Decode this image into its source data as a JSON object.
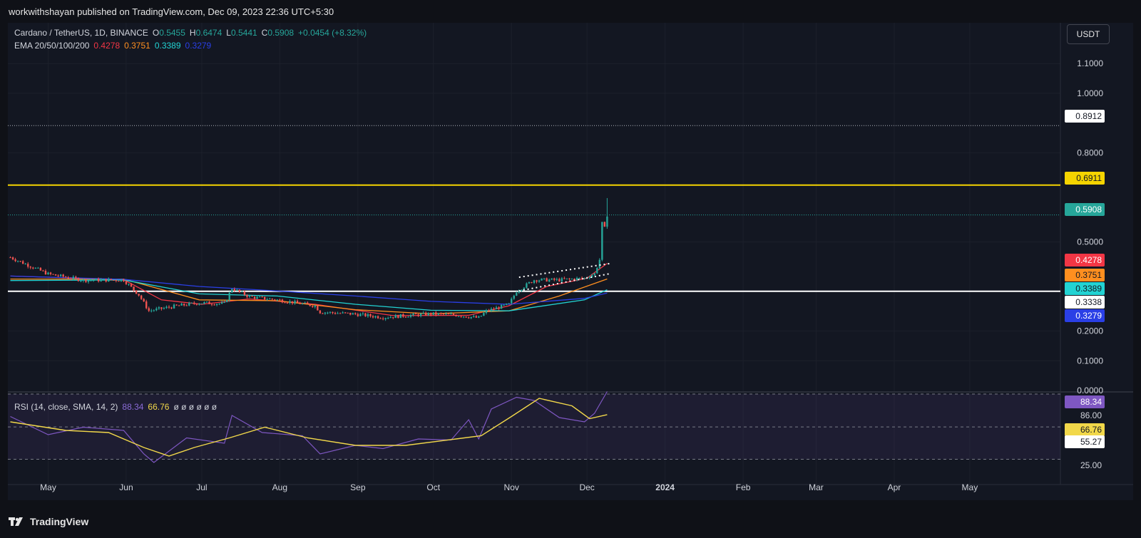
{
  "header": {
    "published": "workwithshayan published on TradingView.com, Dec 09, 2023 22:36 UTC+5:30"
  },
  "legend": {
    "symbol": "Cardano / TetherUS, 1D, BINANCE",
    "open_label": "O",
    "open": "0.5455",
    "high_label": "H",
    "high": "0.6474",
    "low_label": "L",
    "low": "0.5441",
    "close_label": "C",
    "close": "0.5908",
    "change": "+0.0454 (+8.32%)",
    "ema_label": "EMA 20/50/100/200",
    "ema20": "0.4278",
    "ema50": "0.3751",
    "ema100": "0.3389",
    "ema200": "0.3279",
    "rsi_label": "RSI (14, close, SMA, 14, 2)",
    "rsi_value": "88.34",
    "rsi_ma": "66.76",
    "rsi_extra": "ø ø ø ø ø ø"
  },
  "toolbar": {
    "currency": "USDT"
  },
  "footer": {
    "brand": "TradingView"
  },
  "colors": {
    "up": "#26a69a",
    "down": "#ef5350",
    "ema20": "#f23645",
    "ema50": "#ff8f1f",
    "ema100": "#22d3d3",
    "ema200": "#2a3fe6",
    "yellow_line": "#f5d400",
    "rsi": "#7e57c2",
    "rsi_ma": "#f2d84a"
  },
  "chart_data": {
    "type": "line",
    "symbol": "Cardano / TetherUS",
    "interval": "1D",
    "exchange": "BINANCE",
    "price_axis": {
      "ticks": [
        "1.1000",
        "1.0000",
        "0.8000",
        "0.5000",
        "0.2000",
        "0.1000",
        "0.0000"
      ],
      "ylim": [
        0,
        1.17
      ]
    },
    "x_axis": {
      "ticks": [
        "May",
        "Jun",
        "Jul",
        "Aug",
        "Sep",
        "Oct",
        "Nov",
        "Dec",
        "2024",
        "Feb",
        "Mar",
        "Apr",
        "May"
      ],
      "xlim": [
        "2023-04-15",
        "2024-06-06"
      ]
    },
    "price_labels": [
      {
        "value": "0.8912",
        "style": "white"
      },
      {
        "value": "0.6911",
        "style": "yellow"
      },
      {
        "value": "0.5908",
        "style": "green"
      },
      {
        "value": "0.4278",
        "style": "red"
      },
      {
        "value": "0.3751",
        "style": "orange"
      },
      {
        "value": "0.3389",
        "style": "cyan"
      },
      {
        "value": "0.3338",
        "style": "white"
      },
      {
        "value": "0.3279",
        "style": "blue"
      }
    ],
    "horizontal_lines": [
      {
        "price": 0.8912,
        "style": "dotted",
        "color": "#b2b5be"
      },
      {
        "price": 0.6911,
        "style": "solid",
        "color": "#f5d400"
      },
      {
        "price": 0.5908,
        "style": "dotted",
        "color": "#26a69a"
      },
      {
        "price": 0.3338,
        "style": "solid",
        "color": "#ffffff"
      }
    ],
    "channel": {
      "upper": [
        [
          "2023-11-04",
          0.381
        ],
        [
          "2023-12-10",
          0.427
        ]
      ],
      "lower": [
        [
          "2023-11-04",
          0.335
        ],
        [
          "2023-12-10",
          0.393
        ]
      ]
    },
    "price_series": [
      [
        "2023-04-16",
        0.448
      ],
      [
        "2023-05-01",
        0.392
      ],
      [
        "2023-05-15",
        0.371
      ],
      [
        "2023-05-31",
        0.372
      ],
      [
        "2023-06-06",
        0.322
      ],
      [
        "2023-06-10",
        0.268
      ],
      [
        "2023-06-20",
        0.283
      ],
      [
        "2023-06-30",
        0.295
      ],
      [
        "2023-07-10",
        0.292
      ],
      [
        "2023-07-13",
        0.344
      ],
      [
        "2023-07-20",
        0.315
      ],
      [
        "2023-07-31",
        0.305
      ],
      [
        "2023-08-15",
        0.285
      ],
      [
        "2023-08-17",
        0.264
      ],
      [
        "2023-08-31",
        0.257
      ],
      [
        "2023-09-11",
        0.246
      ],
      [
        "2023-09-20",
        0.252
      ],
      [
        "2023-09-30",
        0.258
      ],
      [
        "2023-10-10",
        0.254
      ],
      [
        "2023-10-19",
        0.244
      ],
      [
        "2023-10-22",
        0.267
      ],
      [
        "2023-10-31",
        0.29
      ],
      [
        "2023-11-03",
        0.334
      ],
      [
        "2023-11-10",
        0.372
      ],
      [
        "2023-11-20",
        0.372
      ],
      [
        "2023-11-30",
        0.378
      ],
      [
        "2023-12-04",
        0.393
      ],
      [
        "2023-12-06",
        0.44
      ],
      [
        "2023-12-07",
        0.562
      ],
      [
        "2023-12-08",
        0.5455
      ],
      [
        "2023-12-09",
        0.5908
      ]
    ],
    "ema_series": [
      {
        "name": "EMA 20",
        "value": "0.4278",
        "points": [
          [
            "2023-04-16",
            0.385
          ],
          [
            "2023-05-31",
            0.373
          ],
          [
            "2023-06-15",
            0.305
          ],
          [
            "2023-07-01",
            0.29
          ],
          [
            "2023-07-20",
            0.308
          ],
          [
            "2023-08-15",
            0.29
          ],
          [
            "2023-09-15",
            0.252
          ],
          [
            "2023-10-15",
            0.253
          ],
          [
            "2023-10-31",
            0.285
          ],
          [
            "2023-11-15",
            0.35
          ],
          [
            "2023-12-01",
            0.378
          ],
          [
            "2023-12-09",
            0.4278
          ]
        ]
      },
      {
        "name": "EMA 50",
        "value": "0.3751",
        "points": [
          [
            "2023-04-16",
            0.375
          ],
          [
            "2023-05-31",
            0.375
          ],
          [
            "2023-06-30",
            0.305
          ],
          [
            "2023-07-31",
            0.302
          ],
          [
            "2023-08-31",
            0.272
          ],
          [
            "2023-09-30",
            0.258
          ],
          [
            "2023-10-31",
            0.268
          ],
          [
            "2023-11-20",
            0.318
          ],
          [
            "2023-12-09",
            0.3751
          ]
        ]
      },
      {
        "name": "EMA 100",
        "value": "0.3389",
        "points": [
          [
            "2023-04-16",
            0.37
          ],
          [
            "2023-05-31",
            0.372
          ],
          [
            "2023-06-30",
            0.325
          ],
          [
            "2023-07-31",
            0.318
          ],
          [
            "2023-08-31",
            0.29
          ],
          [
            "2023-09-30",
            0.27
          ],
          [
            "2023-10-31",
            0.268
          ],
          [
            "2023-11-30",
            0.305
          ],
          [
            "2023-12-09",
            0.3389
          ]
        ]
      },
      {
        "name": "EMA 200",
        "value": "0.3279",
        "points": [
          [
            "2023-04-16",
            0.385
          ],
          [
            "2023-05-31",
            0.374
          ],
          [
            "2023-06-30",
            0.35
          ],
          [
            "2023-07-31",
            0.335
          ],
          [
            "2023-08-31",
            0.318
          ],
          [
            "2023-09-30",
            0.3
          ],
          [
            "2023-10-31",
            0.29
          ],
          [
            "2023-11-30",
            0.31
          ],
          [
            "2023-12-09",
            0.3279
          ]
        ]
      }
    ],
    "rsi": {
      "ticks": [
        "86.00",
        "55.27",
        "25.00"
      ],
      "value": "88.34",
      "ma": "66.76",
      "rsi_points": [
        [
          "2023-04-16",
          65
        ],
        [
          "2023-05-01",
          48
        ],
        [
          "2023-05-15",
          55
        ],
        [
          "2023-05-31",
          52
        ],
        [
          "2023-06-08",
          30
        ],
        [
          "2023-06-12",
          22
        ],
        [
          "2023-06-25",
          45
        ],
        [
          "2023-07-10",
          40
        ],
        [
          "2023-07-13",
          66
        ],
        [
          "2023-07-25",
          50
        ],
        [
          "2023-08-10",
          47
        ],
        [
          "2023-08-17",
          30
        ],
        [
          "2023-08-31",
          38
        ],
        [
          "2023-09-11",
          35
        ],
        [
          "2023-09-25",
          44
        ],
        [
          "2023-10-08",
          43
        ],
        [
          "2023-10-15",
          62
        ],
        [
          "2023-10-19",
          44
        ],
        [
          "2023-10-24",
          72
        ],
        [
          "2023-11-03",
          83
        ],
        [
          "2023-11-10",
          80
        ],
        [
          "2023-11-20",
          64
        ],
        [
          "2023-11-30",
          60
        ],
        [
          "2023-12-04",
          68
        ],
        [
          "2023-12-09",
          88.34
        ]
      ],
      "ma_points": [
        [
          "2023-04-16",
          60
        ],
        [
          "2023-05-08",
          52
        ],
        [
          "2023-05-25",
          50
        ],
        [
          "2023-06-08",
          36
        ],
        [
          "2023-06-18",
          28
        ],
        [
          "2023-06-28",
          36
        ],
        [
          "2023-07-12",
          45
        ],
        [
          "2023-07-26",
          55
        ],
        [
          "2023-08-12",
          45
        ],
        [
          "2023-08-31",
          38
        ],
        [
          "2023-09-20",
          38
        ],
        [
          "2023-10-10",
          44
        ],
        [
          "2023-10-20",
          47
        ],
        [
          "2023-11-01",
          65
        ],
        [
          "2023-11-12",
          82
        ],
        [
          "2023-11-25",
          75
        ],
        [
          "2023-12-02",
          63
        ],
        [
          "2023-12-09",
          66.76
        ]
      ]
    }
  }
}
